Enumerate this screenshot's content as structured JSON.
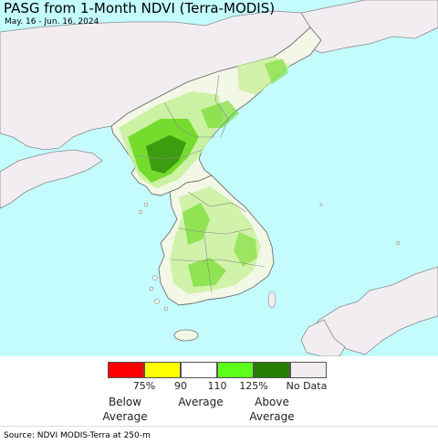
{
  "title": "PASG from 1-Month NDVI (Terra-MODIS)",
  "subtitle": "May. 16 - Jun. 16, 2024",
  "colors": {
    "water": "#c4fbfd",
    "foreign_land": "#f1edf1",
    "land_base": "#f3f7e6",
    "land_light_green": "#c7f09a",
    "land_green": "#66d81a",
    "land_dark_green": "#2f8d0a",
    "border": "#7b7b7b"
  },
  "legend": {
    "swatches": [
      {
        "color": "#ff0000"
      },
      {
        "color": "#ffff00"
      },
      {
        "color": "#ffffff"
      },
      {
        "color": "#5bff1a"
      },
      {
        "color": "#267d00"
      },
      {
        "color": "#f1edf1"
      }
    ],
    "ticks": [
      "75%",
      "90",
      "110",
      "125%",
      "No Data"
    ],
    "categories": {
      "below": [
        "Below",
        "Average"
      ],
      "average": "Average",
      "above": [
        "Above",
        "Average"
      ]
    }
  },
  "source": "Source: NDVI MODIS-Terra at 250-m"
}
